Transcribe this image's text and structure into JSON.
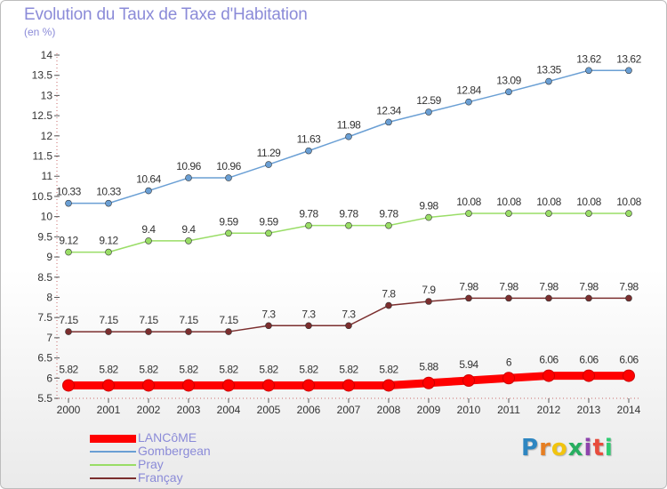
{
  "chart_data": {
    "type": "line",
    "title": "Evolution du Taux de Taxe d'Habitation",
    "subtitle": "(en %)",
    "x": [
      2000,
      2001,
      2002,
      2003,
      2004,
      2005,
      2006,
      2007,
      2008,
      2009,
      2010,
      2011,
      2012,
      2013,
      2014
    ],
    "ylim": [
      5.5,
      14
    ],
    "yticks": [
      5.5,
      6,
      6.5,
      7,
      7.5,
      8,
      8.5,
      9,
      9.5,
      10,
      10.5,
      11,
      11.5,
      12,
      12.5,
      13,
      13.5,
      14
    ],
    "grid": false,
    "legend_position": "bottom-left",
    "series": [
      {
        "name": "LANCôME",
        "color": "#ff0000",
        "values": [
          5.82,
          5.82,
          5.82,
          5.82,
          5.82,
          5.82,
          5.82,
          5.82,
          5.82,
          5.88,
          5.94,
          6,
          6.06,
          6.06,
          6.06
        ],
        "labels": [
          "5.82",
          "5.82",
          "5.82",
          "5.82",
          "5.82",
          "5.82",
          "5.82",
          "5.82",
          "5.82",
          "5.88",
          "5.94",
          "6",
          "6.06",
          "6.06",
          "6.06"
        ]
      },
      {
        "name": "Gombergean",
        "color": "#6a9fd4",
        "values": [
          10.33,
          10.33,
          10.64,
          10.96,
          10.96,
          11.29,
          11.63,
          11.98,
          12.34,
          12.59,
          12.84,
          13.09,
          13.35,
          13.62,
          13.62
        ],
        "labels": [
          "10.33",
          "10.33",
          "10.64",
          "10.96",
          "10.96",
          "11.29",
          "11.63",
          "11.98",
          "12.34",
          "12.59",
          "12.84",
          "13.09",
          "13.35",
          "13.62",
          "13.62"
        ]
      },
      {
        "name": "Pray",
        "color": "#99dd66",
        "values": [
          9.12,
          9.12,
          9.4,
          9.4,
          9.59,
          9.59,
          9.78,
          9.78,
          9.78,
          9.98,
          10.08,
          10.08,
          10.08,
          10.08,
          10.08
        ],
        "labels": [
          "9.12",
          "9.12",
          "9.4",
          "9.4",
          "9.59",
          "9.59",
          "9.78",
          "9.78",
          "9.78",
          "9.98",
          "10.08",
          "10.08",
          "10.08",
          "10.08",
          "10.08"
        ]
      },
      {
        "name": "Françay",
        "color": "#7b2e2e",
        "values": [
          7.15,
          7.15,
          7.15,
          7.15,
          7.15,
          7.3,
          7.3,
          7.3,
          7.8,
          7.9,
          7.98,
          7.98,
          7.98,
          7.98,
          7.98
        ],
        "labels": [
          "7.15",
          "7.15",
          "7.15",
          "7.15",
          "7.15",
          "7.3",
          "7.3",
          "7.3",
          "7.8",
          "7.9",
          "7.98",
          "7.98",
          "7.98",
          "7.98",
          "7.98"
        ]
      }
    ]
  },
  "logo": {
    "letters": [
      "P",
      "r",
      "o",
      "x",
      "i",
      "t",
      "i"
    ],
    "colors": [
      "#2e86c1",
      "#e67e22",
      "#f1c40f",
      "#27ae60",
      "#8e44ad",
      "#e74c3c",
      "#2ecc71"
    ]
  }
}
